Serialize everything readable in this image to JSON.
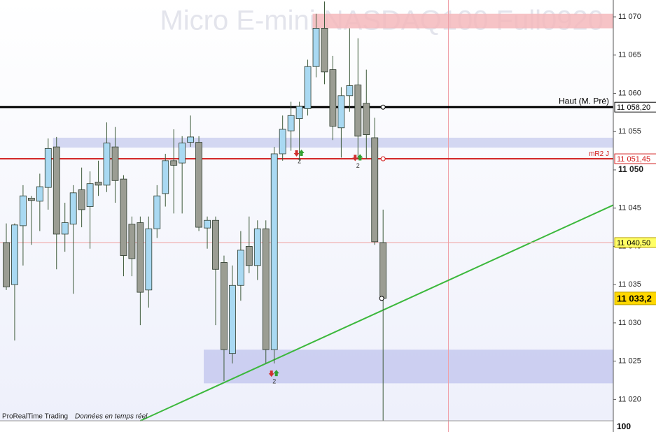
{
  "chart_data": {
    "type": "candlestick",
    "title": "Micro E-mini NASDAQ100 Full0920",
    "open": [
      11040.5,
      11035,
      11042.7,
      11046.3,
      11045.9,
      11047.7,
      11053,
      11041.6,
      11042.9,
      11047.4,
      11045.2,
      11048.4,
      11048,
      11053,
      11048.8,
      11042.9,
      11043.1,
      11034.3,
      11042.3,
      11046.9,
      11051.2,
      11050.9,
      11053.6,
      11053.6,
      11042.4,
      11043.4,
      11037.9,
      11026,
      11034.9,
      11040,
      11037.5,
      11042.3,
      11026.5,
      11052.1,
      11055.1,
      11056.7,
      11058,
      11063.5,
      11068.5,
      11063.1,
      11055.5,
      11059.7,
      11061.1,
      11058.7,
      11054.2,
      11040.5
    ],
    "high": [
      11043,
      11043,
      11048,
      11046.6,
      11049.5,
      11054.1,
      11054.3,
      11045.7,
      11048,
      11050.3,
      11049.8,
      11051.2,
      11056.2,
      11055.6,
      11049.3,
      11043.9,
      11043.9,
      11043.9,
      11048,
      11052.1,
      11055.3,
      11054.4,
      11057.1,
      11054.4,
      11043.9,
      11043.9,
      11038.8,
      11037.5,
      11042,
      11043.9,
      11043.4,
      11043.4,
      11053,
      11057.1,
      11058.9,
      11058.9,
      11064.4,
      11070.4,
      11072,
      11064.9,
      11060.8,
      11068.5,
      11067.2,
      11063.1,
      11056.8,
      11044.8
    ],
    "low": [
      11034.3,
      11027.7,
      11037.5,
      11040.2,
      11042,
      11044.8,
      11037,
      11039.3,
      11033.8,
      11042.5,
      11039.7,
      11046.6,
      11047.1,
      11045.7,
      11036.1,
      11036.1,
      11029.7,
      11032,
      11041.1,
      11045.2,
      11044.3,
      11044.3,
      11053,
      11042,
      11039.7,
      11029.7,
      11022.4,
      11024.7,
      11032.9,
      11036.5,
      11035.6,
      11024.7,
      11024.7,
      11051.2,
      11052.5,
      11051.2,
      11057.1,
      11062.1,
      11061.2,
      11053.9,
      11051.6,
      11057.6,
      11051.4,
      11051.4,
      11040.2,
      11017.2
    ],
    "close": [
      11034.7,
      11042.8,
      11046.6,
      11046,
      11047.8,
      11052.8,
      11041.6,
      11043.1,
      11047,
      11044.8,
      11048.2,
      11048,
      11053.5,
      11048.6,
      11038.8,
      11038.4,
      11034,
      11042.3,
      11046.6,
      11051.2,
      11050.6,
      11053.5,
      11054.3,
      11042.5,
      11043.4,
      11037,
      11026.5,
      11034.9,
      11039.5,
      11037.5,
      11042.3,
      11026.5,
      11052.1,
      11055.3,
      11057.1,
      11058.3,
      11063.5,
      11068.5,
      11062.8,
      11055.7,
      11059.7,
      11061,
      11054.4,
      11054.6,
      11040.6,
      11033.2
    ],
    "up_color": "#a9d9f2",
    "down_color": "#9b9d93",
    "ylim": [
      11017.2,
      11072.2
    ],
    "yticks": [
      {
        "value": 11020,
        "label": "11 020"
      },
      {
        "value": 11025,
        "label": "11 025"
      },
      {
        "value": 11030,
        "label": "11 030"
      },
      {
        "value": 11035,
        "label": "11 035"
      },
      {
        "value": 11040,
        "label": "11 040"
      },
      {
        "value": 11045,
        "label": "11 045"
      },
      {
        "value": 11050,
        "label": "11 050",
        "bold": true
      },
      {
        "value": 11055,
        "label": "11 055"
      },
      {
        "value": 11060,
        "label": "11 060"
      },
      {
        "value": 11065,
        "label": "11 065"
      },
      {
        "value": 11070,
        "label": "11 070"
      }
    ],
    "levels": [
      {
        "name": "Haut (M. Pré)",
        "value": 11058.2,
        "label": "11 058,20",
        "color": "#000000",
        "width": 3
      },
      {
        "name": "mR2 J",
        "value": 11051.45,
        "label": "11 051,45",
        "color": "#d01818",
        "width": 2
      },
      {
        "value": 11040.5,
        "label": "11 040,50",
        "color": "#f0a0a0",
        "width": 1,
        "box": "#ffff66"
      },
      {
        "value": 11033.2,
        "label": "11 033,2",
        "box": "#ffd700"
      }
    ],
    "zones": [
      {
        "low": 11068.5,
        "high": 11070.4,
        "start": 37,
        "color": "#f4b8bc"
      },
      {
        "low": 11052.9,
        "high": 11054.2,
        "start": 6,
        "color": "#cdd0f0"
      },
      {
        "low": 11022.1,
        "high": 11026.5,
        "start": 24,
        "color": "#c6c9ef"
      }
    ],
    "trendline": {
      "x": [
        16,
        72.5
      ],
      "y": [
        11017.2,
        11045.4
      ],
      "color": "#3cb83c"
    },
    "vline": {
      "x": 52.8,
      "color": "#f0a0a8"
    },
    "annotations": [
      {
        "text": "2",
        "x": 32,
        "y": 11022.3
      },
      {
        "text": "2",
        "x": 35,
        "y": 11051.1
      },
      {
        "text": "2",
        "x": 42,
        "y": 11050.5
      }
    ],
    "footer": {
      "brand": "ProRealTime Trading",
      "note": "Données en temps réel"
    },
    "bottom_label": "100"
  }
}
